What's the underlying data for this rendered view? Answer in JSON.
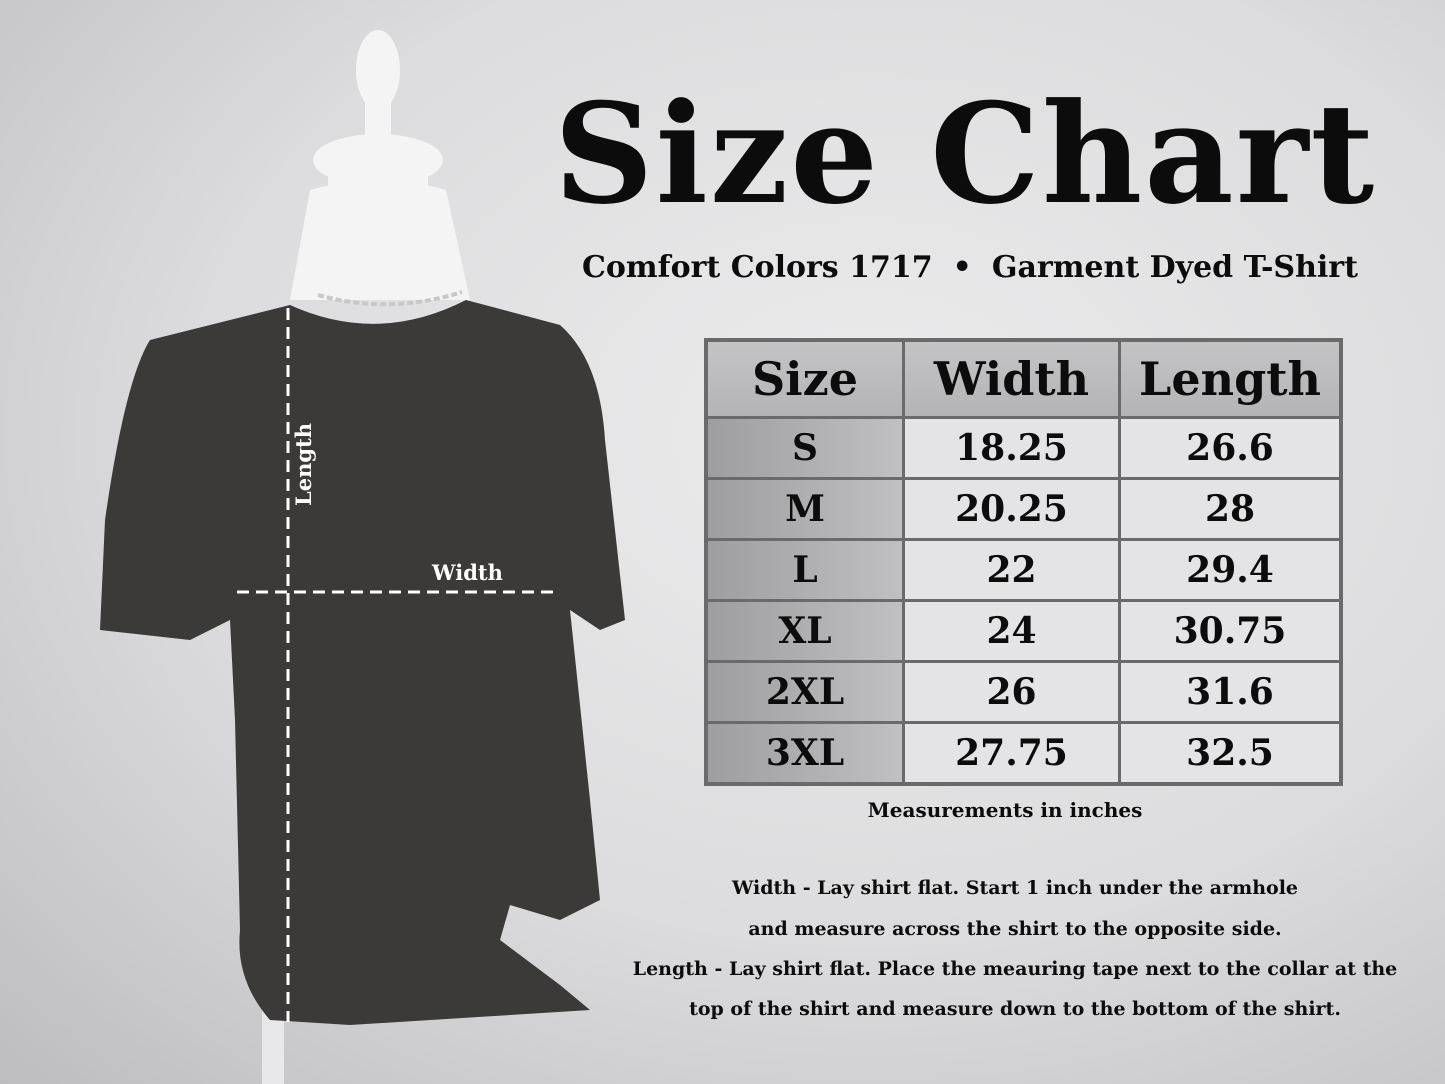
{
  "title": "Size Chart",
  "subtitle": {
    "product": "Comfort Colors 1717",
    "separator": "•",
    "style": "Garment Dyed T-Shirt"
  },
  "diagram_labels": {
    "length": "Length",
    "width": "Width"
  },
  "table": {
    "headers": [
      "Size",
      "Width",
      "Length"
    ],
    "rows": [
      [
        "S",
        "18.25",
        "26.6"
      ],
      [
        "M",
        "20.25",
        "28"
      ],
      [
        "L",
        "22",
        "29.4"
      ],
      [
        "XL",
        "24",
        "30.75"
      ],
      [
        "2XL",
        "26",
        "31.6"
      ],
      [
        "3XL",
        "27.75",
        "32.5"
      ]
    ]
  },
  "units_note": "Measurements in inches",
  "instructions": [
    "Width - Lay shirt flat.  Start 1 inch under the armhole",
    "and measure across the shirt to the opposite side.",
    "Length - Lay shirt flat.  Place the meauring tape next to the collar at the",
    "top of the shirt and measure down to the bottom of the shirt."
  ],
  "colors": {
    "shirt": "#3b3a38",
    "table_border": "#6a6a6a",
    "text": "#0c0c0c"
  }
}
